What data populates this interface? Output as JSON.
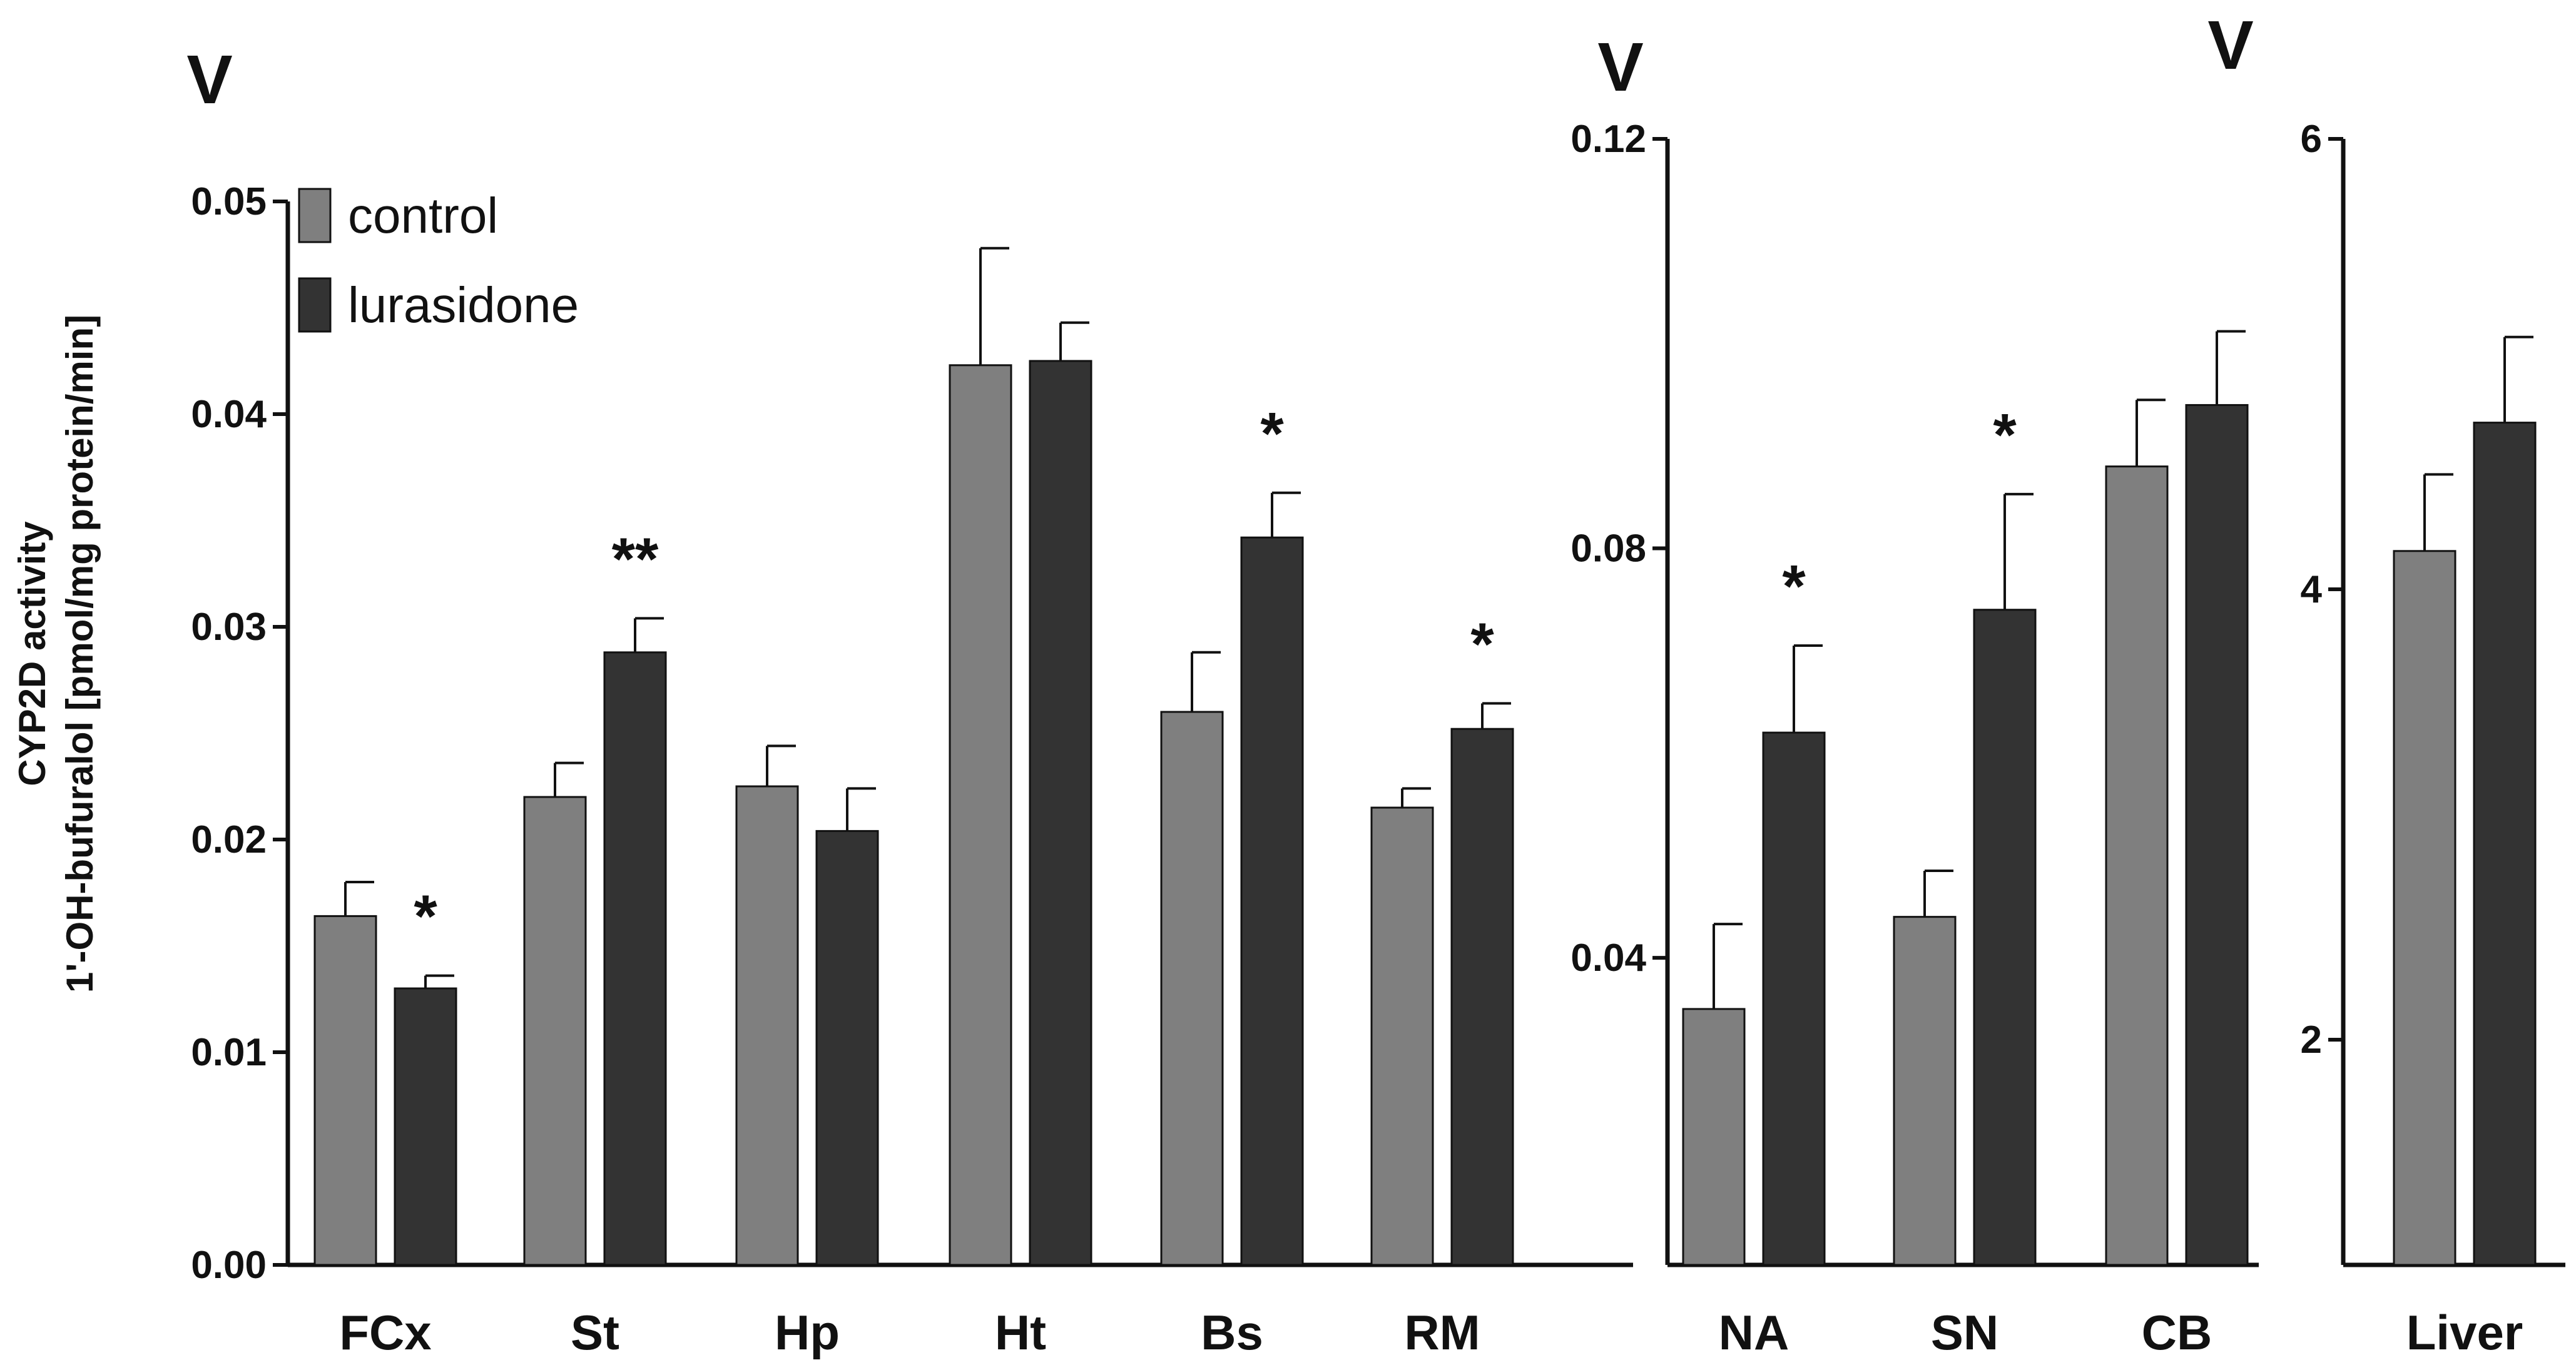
{
  "chart_data": {
    "type": "bar",
    "ylabel_line1": "CYP2D activity",
    "ylabel_line2": "1'-OH-bufuralol [pmol/mg protein/min]",
    "legend": [
      {
        "name": "control",
        "color": "#7f7f7f"
      },
      {
        "name": "lurasidone",
        "color": "#333333"
      }
    ],
    "panels": [
      {
        "panel_label": "V",
        "ylim": [
          0,
          0.05
        ],
        "yticks": [
          "0.00",
          "0.01",
          "0.02",
          "0.03",
          "0.04",
          "0.05"
        ],
        "categories": [
          "FCx",
          "St",
          "Hp",
          "Ht",
          "Bs",
          "RM"
        ],
        "series": [
          {
            "name": "control",
            "values": [
              0.0164,
              0.022,
              0.0225,
              0.0423,
              0.026,
              0.0215
            ],
            "errors": [
              0.0016,
              0.0016,
              0.0019,
              0.0055,
              0.0028,
              0.0009
            ]
          },
          {
            "name": "lurasidone",
            "values": [
              0.013,
              0.0288,
              0.0204,
              0.0425,
              0.0342,
              0.0252
            ],
            "errors": [
              0.0006,
              0.0016,
              0.002,
              0.0018,
              0.0021,
              0.0012
            ]
          }
        ],
        "significance": [
          "*",
          "**",
          "",
          "",
          "*",
          "*"
        ]
      },
      {
        "panel_label": "V",
        "ylim": [
          0.01,
          0.12
        ],
        "yticks": [
          "0.04",
          "0.08",
          "0.12"
        ],
        "categories": [
          "NA",
          "SN",
          "CB"
        ],
        "series": [
          {
            "name": "control",
            "values": [
              0.035,
              0.044,
              0.088
            ],
            "errors": [
              0.0083,
              0.0045,
              0.0065
            ]
          },
          {
            "name": "lurasidone",
            "values": [
              0.062,
              0.074,
              0.094
            ],
            "errors": [
              0.0085,
              0.0113,
              0.0072
            ]
          }
        ],
        "significance": [
          "*",
          "*",
          ""
        ]
      },
      {
        "panel_label": "V",
        "ylim": [
          1,
          6
        ],
        "yticks": [
          "2",
          "4",
          "6"
        ],
        "categories": [
          "Liver"
        ],
        "series": [
          {
            "name": "control",
            "values": [
              4.17
            ],
            "errors": [
              0.34
            ]
          },
          {
            "name": "lurasidone",
            "values": [
              4.74
            ],
            "errors": [
              0.38
            ]
          }
        ],
        "significance": [
          ""
        ]
      }
    ]
  }
}
